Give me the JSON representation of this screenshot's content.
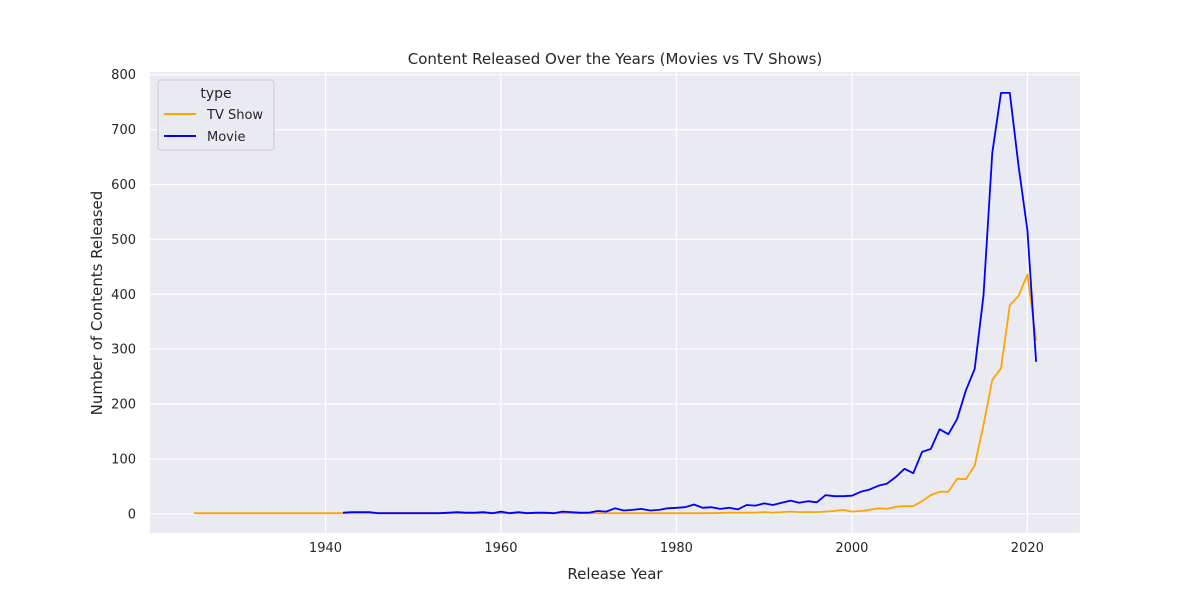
{
  "chart_data": {
    "type": "line",
    "title": "Content Released Over the Years (Movies vs TV Shows)",
    "xlabel": "Release Year",
    "ylabel": "Number of Contents Released",
    "xlim": [
      1920,
      2026
    ],
    "ylim": [
      -35,
      805
    ],
    "xticks": [
      1940,
      1960,
      1980,
      2000,
      2020
    ],
    "yticks": [
      0,
      100,
      200,
      300,
      400,
      500,
      600,
      700,
      800
    ],
    "grid": true,
    "legend": {
      "title": "type",
      "placement": "top-left"
    },
    "series": [
      {
        "name": "TV Show",
        "color": "#ffa500",
        "points": [
          [
            1925,
            1
          ],
          [
            1930,
            1
          ],
          [
            1935,
            1
          ],
          [
            1940,
            1
          ],
          [
            1942,
            1
          ],
          [
            1945,
            1
          ],
          [
            1946,
            1
          ],
          [
            1950,
            1
          ],
          [
            1955,
            1
          ],
          [
            1960,
            1
          ],
          [
            1965,
            1
          ],
          [
            1970,
            1
          ],
          [
            1972,
            1
          ],
          [
            1974,
            1
          ],
          [
            1976,
            1
          ],
          [
            1978,
            1
          ],
          [
            1980,
            1
          ],
          [
            1982,
            1
          ],
          [
            1984,
            1
          ],
          [
            1986,
            2
          ],
          [
            1988,
            2
          ],
          [
            1989,
            2
          ],
          [
            1990,
            3
          ],
          [
            1991,
            2
          ],
          [
            1992,
            3
          ],
          [
            1993,
            4
          ],
          [
            1994,
            3
          ],
          [
            1995,
            3
          ],
          [
            1996,
            3
          ],
          [
            1997,
            4
          ],
          [
            1998,
            5
          ],
          [
            1999,
            7
          ],
          [
            2000,
            4
          ],
          [
            2001,
            5
          ],
          [
            2002,
            7
          ],
          [
            2003,
            10
          ],
          [
            2004,
            9
          ],
          [
            2005,
            13
          ],
          [
            2006,
            14
          ],
          [
            2007,
            14
          ],
          [
            2008,
            23
          ],
          [
            2009,
            34
          ],
          [
            2010,
            40
          ],
          [
            2011,
            40
          ],
          [
            2012,
            64
          ],
          [
            2013,
            63
          ],
          [
            2014,
            88
          ],
          [
            2015,
            162
          ],
          [
            2016,
            244
          ],
          [
            2017,
            265
          ],
          [
            2018,
            380
          ],
          [
            2019,
            397
          ],
          [
            2020,
            436
          ],
          [
            2021,
            315
          ]
        ]
      },
      {
        "name": "Movie",
        "color": "#0000ff",
        "points": [
          [
            1942,
            2
          ],
          [
            1943,
            3
          ],
          [
            1944,
            3
          ],
          [
            1945,
            3
          ],
          [
            1946,
            1
          ],
          [
            1947,
            1
          ],
          [
            1948,
            1
          ],
          [
            1949,
            1
          ],
          [
            1950,
            1
          ],
          [
            1951,
            1
          ],
          [
            1952,
            1
          ],
          [
            1953,
            1
          ],
          [
            1954,
            2
          ],
          [
            1955,
            3
          ],
          [
            1956,
            2
          ],
          [
            1957,
            2
          ],
          [
            1958,
            3
          ],
          [
            1959,
            1
          ],
          [
            1960,
            4
          ],
          [
            1961,
            1
          ],
          [
            1962,
            3
          ],
          [
            1963,
            1
          ],
          [
            1964,
            2
          ],
          [
            1965,
            2
          ],
          [
            1966,
            1
          ],
          [
            1967,
            4
          ],
          [
            1968,
            3
          ],
          [
            1969,
            2
          ],
          [
            1970,
            2
          ],
          [
            1971,
            5
          ],
          [
            1972,
            4
          ],
          [
            1973,
            10
          ],
          [
            1974,
            6
          ],
          [
            1975,
            7
          ],
          [
            1976,
            9
          ],
          [
            1977,
            6
          ],
          [
            1978,
            7
          ],
          [
            1979,
            10
          ],
          [
            1980,
            11
          ],
          [
            1981,
            12
          ],
          [
            1982,
            17
          ],
          [
            1983,
            11
          ],
          [
            1984,
            12
          ],
          [
            1985,
            9
          ],
          [
            1986,
            11
          ],
          [
            1987,
            8
          ],
          [
            1988,
            16
          ],
          [
            1989,
            15
          ],
          [
            1990,
            19
          ],
          [
            1991,
            16
          ],
          [
            1992,
            20
          ],
          [
            1993,
            24
          ],
          [
            1994,
            20
          ],
          [
            1995,
            23
          ],
          [
            1996,
            21
          ],
          [
            1997,
            34
          ],
          [
            1998,
            32
          ],
          [
            1999,
            32
          ],
          [
            2000,
            33
          ],
          [
            2001,
            40
          ],
          [
            2002,
            44
          ],
          [
            2003,
            51
          ],
          [
            2004,
            55
          ],
          [
            2005,
            67
          ],
          [
            2006,
            82
          ],
          [
            2007,
            74
          ],
          [
            2008,
            113
          ],
          [
            2009,
            118
          ],
          [
            2010,
            154
          ],
          [
            2011,
            145
          ],
          [
            2012,
            173
          ],
          [
            2013,
            225
          ],
          [
            2014,
            264
          ],
          [
            2015,
            398
          ],
          [
            2016,
            658
          ],
          [
            2017,
            767
          ],
          [
            2018,
            767
          ],
          [
            2019,
            633
          ],
          [
            2020,
            517
          ],
          [
            2021,
            277
          ]
        ]
      }
    ]
  }
}
